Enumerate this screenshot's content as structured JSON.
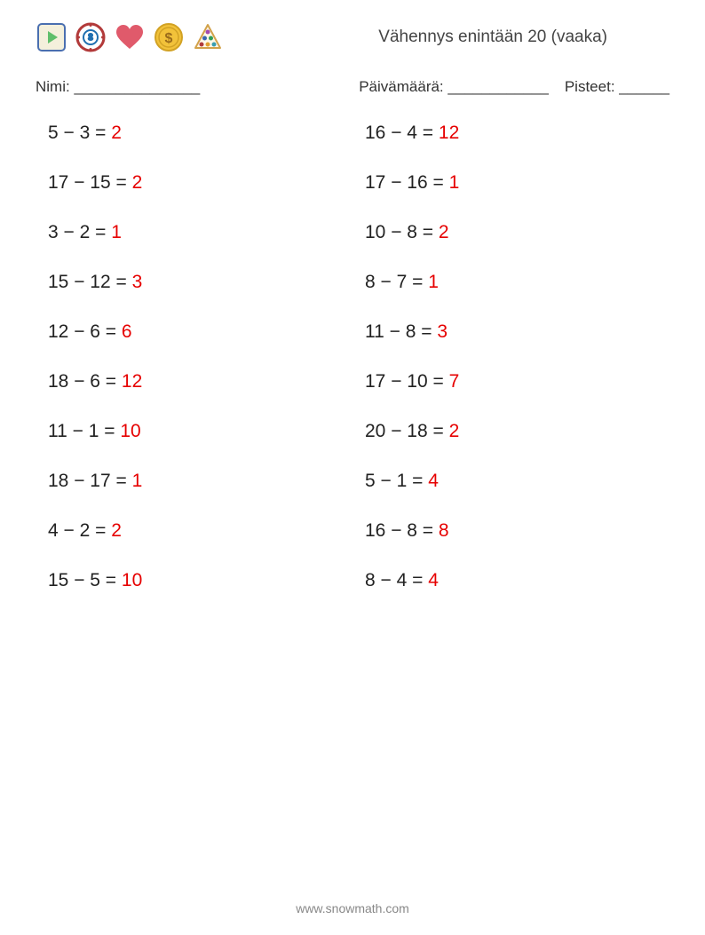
{
  "header": {
    "title": "Vähennys enintään 20 (vaaka)",
    "title_fontsize": 19,
    "title_color": "#444444"
  },
  "info": {
    "name_label": "Nimi: _______________",
    "date_label": "Päivämäärä: ____________",
    "score_label": "Pisteet: ______"
  },
  "icons": {
    "play": {
      "bg": "#f4f0dc",
      "border": "#4a6fb0",
      "fill": "#5fbf6b"
    },
    "chip": {
      "border": "#b23a3a",
      "inner": "#1f6fb0",
      "dots": "#ffffff"
    },
    "heart": {
      "fill": "#e05a6b"
    },
    "coin": {
      "fill": "#f2c23a",
      "text": "#9a6b1a"
    },
    "billiard": {
      "border": "#d2a24a",
      "balls": [
        "#a34ab0",
        "#3a66b0",
        "#2f9e5a",
        "#b03a3a",
        "#e0a030",
        "#3a9eb0"
      ]
    }
  },
  "worksheet": {
    "type": "math-problems-two-column",
    "text_color": "#222222",
    "answer_color": "#e60000",
    "fontsize": 21,
    "row_gap": 32,
    "columns": [
      [
        {
          "a": 5,
          "b": 3,
          "ans": 2
        },
        {
          "a": 17,
          "b": 15,
          "ans": 2
        },
        {
          "a": 3,
          "b": 2,
          "ans": 1
        },
        {
          "a": 15,
          "b": 12,
          "ans": 3
        },
        {
          "a": 12,
          "b": 6,
          "ans": 6
        },
        {
          "a": 18,
          "b": 6,
          "ans": 12
        },
        {
          "a": 11,
          "b": 1,
          "ans": 10
        },
        {
          "a": 18,
          "b": 17,
          "ans": 1
        },
        {
          "a": 4,
          "b": 2,
          "ans": 2
        },
        {
          "a": 15,
          "b": 5,
          "ans": 10
        }
      ],
      [
        {
          "a": 16,
          "b": 4,
          "ans": 12
        },
        {
          "a": 17,
          "b": 16,
          "ans": 1
        },
        {
          "a": 10,
          "b": 8,
          "ans": 2
        },
        {
          "a": 8,
          "b": 7,
          "ans": 1
        },
        {
          "a": 11,
          "b": 8,
          "ans": 3
        },
        {
          "a": 17,
          "b": 10,
          "ans": 7
        },
        {
          "a": 20,
          "b": 18,
          "ans": 2
        },
        {
          "a": 5,
          "b": 1,
          "ans": 4
        },
        {
          "a": 16,
          "b": 8,
          "ans": 8
        },
        {
          "a": 8,
          "b": 4,
          "ans": 4
        }
      ]
    ]
  },
  "footer": {
    "text": "www.snowmath.com",
    "color": "#888888",
    "fontsize": 14
  },
  "page_bg": "#ffffff"
}
